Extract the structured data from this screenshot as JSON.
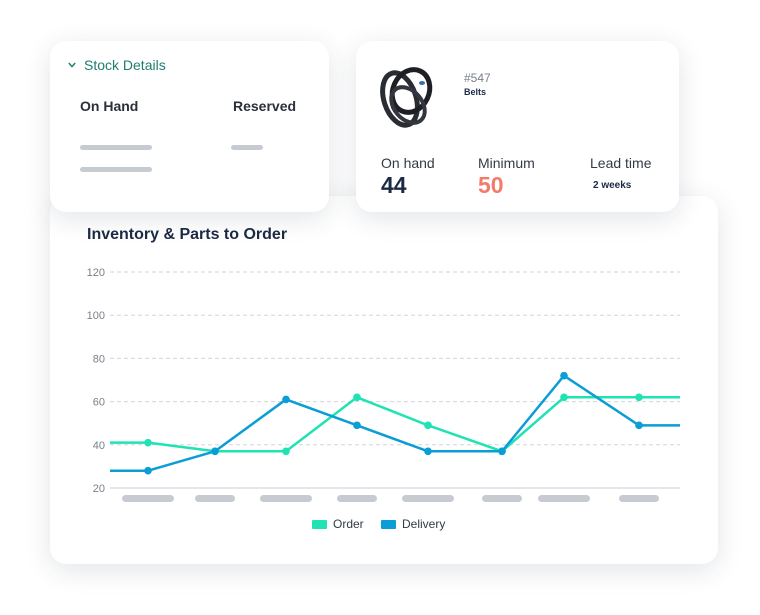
{
  "stock_details": {
    "title": "Stock Details",
    "columns": [
      "On Hand",
      "Reserved"
    ]
  },
  "item": {
    "id": "#547",
    "name": "Belts",
    "stats": [
      {
        "label": "On hand",
        "value": "44"
      },
      {
        "label": "Minimum",
        "value": "50"
      },
      {
        "label": "Lead time",
        "value": "2 weeks"
      }
    ]
  },
  "colors": {
    "accent": "#1e7e70",
    "order": "#1fe3b2",
    "delivery": "#0b9dd6",
    "minimum": "#f47a6c",
    "value_dark": "#1c2a45",
    "skeleton": "#c6cbd2"
  },
  "chart_data": {
    "type": "line",
    "title": "Inventory & Parts to Order",
    "categories": [
      "",
      "",
      "",
      "",
      "",
      "",
      "",
      ""
    ],
    "y_ticks": [
      20,
      40,
      60,
      80,
      100,
      120
    ],
    "ylim": [
      20,
      120
    ],
    "grid": true,
    "legend_placement": "bottom-center",
    "series": [
      {
        "name": "Order",
        "values": [
          41,
          37,
          37,
          62,
          49,
          37,
          62,
          62
        ]
      },
      {
        "name": "Delivery",
        "values": [
          28,
          37,
          61,
          49,
          37,
          37,
          72,
          49
        ]
      }
    ]
  }
}
